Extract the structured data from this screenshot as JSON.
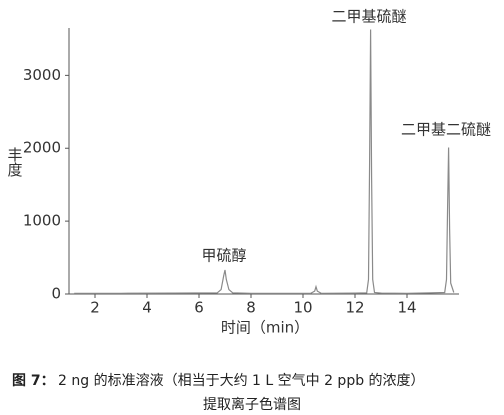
{
  "chart_data": {
    "type": "line",
    "x": [
      1.2,
      3,
      5,
      6.7,
      6.85,
      6.95,
      7.0,
      7.05,
      7.15,
      7.3,
      8,
      10.3,
      10.45,
      10.5,
      10.55,
      10.7,
      12,
      12.45,
      12.52,
      12.56,
      12.6,
      12.64,
      12.68,
      12.75,
      13,
      14,
      14.9,
      15.45,
      15.52,
      15.56,
      15.6,
      15.64,
      15.68,
      15.8
    ],
    "series": [
      {
        "color": "#8a8a8a",
        "values": [
          10,
          10,
          12,
          15,
          60,
          250,
          330,
          200,
          60,
          15,
          10,
          10,
          40,
          100,
          40,
          10,
          12,
          15,
          200,
          1800,
          3630,
          1600,
          200,
          20,
          12,
          10,
          15,
          20,
          200,
          1200,
          2010,
          900,
          150,
          20
        ]
      }
    ],
    "xlim": [
      1,
      16
    ],
    "xticks": [
      2,
      4,
      6,
      8,
      10,
      12,
      14
    ],
    "ylim": [
      0,
      3650
    ],
    "yticks": [
      0,
      1000,
      2000,
      3000
    ],
    "xlabel": "时间（min）",
    "ylabel": "丰度",
    "annotations": [
      "甲硫醇",
      "二甲基硫醚",
      "二甲基二硫醚"
    ],
    "caption_label": "图 7：",
    "caption": [
      "2 ng 的标准溶液（相当于大约 1 L 空气中 2 ppb 的浓度）",
      "提取离子色谱图"
    ]
  }
}
